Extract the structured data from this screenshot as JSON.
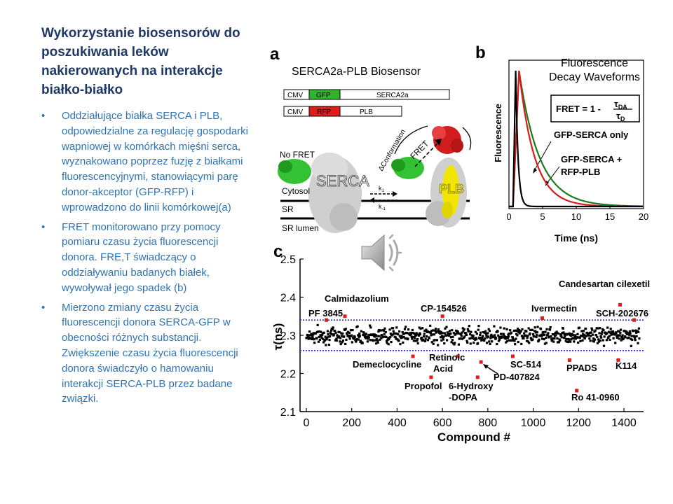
{
  "slide": {
    "title": "Wykorzystanie biosensorów do poszukiwania leków nakierowanych na interakcje białko-białko",
    "bullets": [
      "Oddziałujące białka SERCA i PLB, odpowiedzialne za regulację gospodarki  wapniowej w komórkach mięśni serca, wyznakowano poprzez fuzję z białkami fluorescencyjnymi, stanowiącymi parę donor-akceptor (GFP-RFP) i wprowadzono do linii komórkowej(a)",
      "FRET monitorowano przy pomocy pomiaru czasu życia fluorescencji donora. FRE,T świadczący o oddziaływaniu badanych białek, wywoływał jego spadek (b)",
      "Mierzono zmiany czasu życia fluorescencji donora SERCA-GFP w obecności różnych substancji. Zwiększenie czasu życia fluorescencji donora świadczyło o hamowaniu interakcji SERCA-PLB przez badane związki."
    ],
    "bullet_char": "•",
    "speaker_icon": "speaker-icon"
  },
  "panel_a": {
    "label": "a",
    "title": "SERCA2a-PLB Biosensor",
    "construct1": [
      "CMV",
      "GFP",
      "SERCA2a"
    ],
    "construct2": [
      "CMV",
      "RFP",
      "PLB"
    ],
    "no_fret": "No FRET",
    "serca": "SERCA",
    "plb": "PLB",
    "fret": "FRET",
    "conformation": "ΔConformation",
    "k1": "k",
    "k1_sub": "1",
    "km1": "k",
    "km1_sub": "-1",
    "cytosol": "Cytosol",
    "sr": "SR",
    "sr_lumen": "SR lumen",
    "colors": {
      "gfp": "#2db52d",
      "rfp": "#e01b1b",
      "plb": "#f2e600"
    }
  },
  "panel_b": {
    "label": "b",
    "title_line1": "Fluorescence",
    "title_line2": "Decay Waveforms",
    "formula_lhs": "FRET = 1 -",
    "formula_num": "τ",
    "formula_num_sub": "DA",
    "formula_den": "τ",
    "formula_den_sub": "D",
    "legend1": "GFP-SERCA only",
    "legend2_line1": "GFP-SERCA +",
    "legend2_line2": "RFP-PLB",
    "ylabel": "Fluorescence",
    "xlabel": "Time (ns)"
  },
  "panel_c": {
    "label": "c"
  },
  "chart_data": [
    {
      "type": "line",
      "title": "Fluorescence Decay Waveforms",
      "xlabel": "Time (ns)",
      "ylabel": "Fluorescence",
      "xlim": [
        0,
        20
      ],
      "xticks": [
        "0",
        "5",
        "10",
        "15",
        "20"
      ],
      "series": [
        {
          "name": "GFP-SERCA only",
          "color": "#1a7a1a",
          "tau": 3.0,
          "peak": 1.5
        },
        {
          "name": "GFP-SERCA + RFP-PLB",
          "color": "#d81b1b",
          "tau": 2.3,
          "peak": 1.5
        },
        {
          "color": "#000000",
          "tau": 0.35,
          "peak": 1.0
        }
      ]
    },
    {
      "type": "scatter",
      "xlabel": "Compound #",
      "ylabel": "τ(ns)",
      "xlim": [
        0,
        1470
      ],
      "ylim": [
        2.1,
        2.5
      ],
      "xticks": [
        0,
        200,
        400,
        600,
        800,
        1000,
        1200,
        1400
      ],
      "yticks": [
        "2.1",
        "2.2",
        "2.3",
        "2.4",
        "2.5"
      ],
      "thresholds": [
        2.34,
        2.26
      ],
      "baseline_mean": 2.3,
      "baseline_spread": 0.02,
      "baseline_count": 1470,
      "hits": [
        {
          "label": "PF 3845",
          "x": 88,
          "y": 2.34
        },
        {
          "label": "Calmidazolium",
          "x": 170,
          "y": 2.35
        },
        {
          "label": "CP-154526",
          "x": 600,
          "y": 2.35
        },
        {
          "label": "Ivermectin",
          "x": 1040,
          "y": 2.345
        },
        {
          "label": "Candesartan cilexetil",
          "x": 1383,
          "y": 2.38
        },
        {
          "label": "SCH-202676",
          "x": 1445,
          "y": 2.34
        },
        {
          "label": "Demeclocycline",
          "x": 470,
          "y": 2.245
        },
        {
          "label": "Propofol",
          "x": 550,
          "y": 2.19
        },
        {
          "label": "Retinoic Acid",
          "x": 668,
          "y": 2.245
        },
        {
          "label": "6-Hydroxy -DOPA",
          "x": 755,
          "y": 2.19
        },
        {
          "label": "PD-407824",
          "x": 770,
          "y": 2.23
        },
        {
          "label": "SC-514",
          "x": 910,
          "y": 2.245
        },
        {
          "label": "PPADS",
          "x": 1160,
          "y": 2.235
        },
        {
          "label": "Ro 41-0960",
          "x": 1192,
          "y": 2.155
        },
        {
          "label": "K114",
          "x": 1375,
          "y": 2.235
        }
      ]
    }
  ]
}
